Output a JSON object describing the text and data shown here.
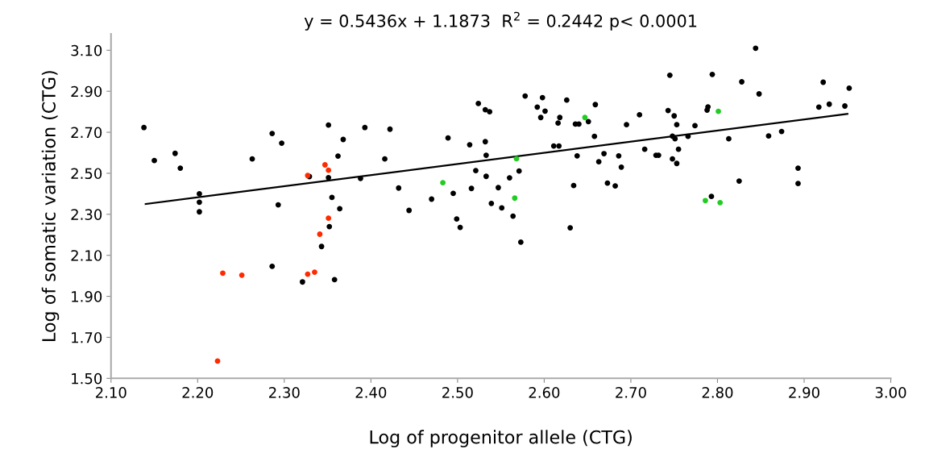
{
  "chart_data": {
    "type": "scatter",
    "title": "y = 0.5436x + 1.1873  R$^{2}$ = 0.2442 p< 0.0001",
    "xlabel": "Log of progenitor allele (CTG)",
    "ylabel": "Log of somatic variation (CTG)",
    "xlim": [
      2.1,
      3.0
    ],
    "ylim": [
      1.5,
      3.18
    ],
    "xticks": [
      {
        "value": 2.1,
        "label": "2.10"
      },
      {
        "value": 2.2,
        "label": "2.20"
      },
      {
        "value": 2.3,
        "label": "2.30"
      },
      {
        "value": 2.4,
        "label": "2.40"
      },
      {
        "value": 2.5,
        "label": "2.50"
      },
      {
        "value": 2.6,
        "label": "2.60"
      },
      {
        "value": 2.7,
        "label": "2.70"
      },
      {
        "value": 2.8,
        "label": "2.80"
      },
      {
        "value": 2.9,
        "label": "2.90"
      },
      {
        "value": 3.0,
        "label": "3.00"
      }
    ],
    "yticks": [
      {
        "value": 1.5,
        "label": "1.50"
      },
      {
        "value": 1.7,
        "label": "1.70"
      },
      {
        "value": 1.9,
        "label": "1.90"
      },
      {
        "value": 2.1,
        "label": "2.10"
      },
      {
        "value": 2.3,
        "label": "2.30"
      },
      {
        "value": 2.5,
        "label": "2.50"
      },
      {
        "value": 2.7,
        "label": "2.70"
      },
      {
        "value": 2.9,
        "label": "2.90"
      },
      {
        "value": 3.1,
        "label": "3.10"
      }
    ],
    "grid": false,
    "legend": false,
    "marker": "circle",
    "series": [
      {
        "color": "#000000",
        "x": [
          2.138,
          2.15,
          2.174,
          2.18,
          2.202,
          2.202,
          2.202,
          2.263,
          2.286,
          2.297,
          2.293,
          2.286,
          2.321,
          2.329,
          2.351,
          2.368,
          2.362,
          2.351,
          2.355,
          2.364,
          2.352,
          2.343,
          2.358,
          2.388,
          2.393,
          2.422,
          2.416,
          2.432,
          2.444,
          2.489,
          2.47,
          2.495,
          2.499,
          2.503,
          2.514,
          2.521,
          2.516,
          2.524,
          2.532,
          2.537,
          2.532,
          2.533,
          2.533,
          2.547,
          2.539,
          2.551,
          2.56,
          2.571,
          2.564,
          2.573,
          2.578,
          2.592,
          2.598,
          2.601,
          2.596,
          2.626,
          2.618,
          2.616,
          2.611,
          2.617,
          2.634,
          2.63,
          2.638,
          2.636,
          2.64,
          2.651,
          2.659,
          2.658,
          2.663,
          2.669,
          2.673,
          2.682,
          2.686,
          2.689,
          2.695,
          2.71,
          2.716,
          2.729,
          2.732,
          2.745,
          2.743,
          2.75,
          2.753,
          2.748,
          2.751,
          2.755,
          2.748,
          2.753,
          2.766,
          2.774,
          2.789,
          2.788,
          2.794,
          2.793,
          2.813,
          2.825,
          2.828,
          2.844,
          2.848,
          2.859,
          2.874,
          2.893,
          2.893,
          2.917,
          2.922,
          2.929,
          2.947,
          2.952
        ],
        "values": [
          2.723,
          2.562,
          2.597,
          2.525,
          2.4,
          2.359,
          2.312,
          2.57,
          2.694,
          2.647,
          2.346,
          2.046,
          1.97,
          2.484,
          2.735,
          2.665,
          2.584,
          2.479,
          2.382,
          2.327,
          2.24,
          2.143,
          1.981,
          2.475,
          2.723,
          2.715,
          2.57,
          2.428,
          2.319,
          2.672,
          2.374,
          2.402,
          2.277,
          2.236,
          2.639,
          2.513,
          2.426,
          2.84,
          2.81,
          2.8,
          2.654,
          2.588,
          2.485,
          2.43,
          2.353,
          2.331,
          2.478,
          2.511,
          2.291,
          2.164,
          2.877,
          2.823,
          2.869,
          2.803,
          2.772,
          2.857,
          2.772,
          2.745,
          2.633,
          2.633,
          2.44,
          2.234,
          2.585,
          2.74,
          2.74,
          2.752,
          2.835,
          2.68,
          2.556,
          2.596,
          2.452,
          2.438,
          2.585,
          2.53,
          2.737,
          2.785,
          2.617,
          2.588,
          2.588,
          2.978,
          2.806,
          2.78,
          2.737,
          2.681,
          2.668,
          2.617,
          2.57,
          2.548,
          2.68,
          2.732,
          2.824,
          2.808,
          2.982,
          2.387,
          2.668,
          2.462,
          2.946,
          3.11,
          2.887,
          2.682,
          2.704,
          2.525,
          2.45,
          2.823,
          2.944,
          2.837,
          2.828,
          2.915
        ]
      },
      {
        "color": "#ff2a00",
        "x": [
          2.229,
          2.251,
          2.223,
          2.327,
          2.347,
          2.351,
          2.351,
          2.341,
          2.327,
          2.335
        ],
        "values": [
          2.013,
          2.003,
          1.584,
          2.489,
          2.541,
          2.515,
          2.281,
          2.203,
          2.008,
          2.018
        ]
      },
      {
        "color": "#22cc22",
        "x": [
          2.483,
          2.568,
          2.566,
          2.647,
          2.801,
          2.786,
          2.803
        ],
        "values": [
          2.454,
          2.571,
          2.379,
          2.772,
          2.802,
          2.367,
          2.357
        ]
      },
      {
        "type": "line",
        "color": "#000000",
        "marker": "none",
        "x": [
          2.14,
          2.95
        ],
        "values": [
          2.35,
          2.79
        ]
      }
    ]
  }
}
